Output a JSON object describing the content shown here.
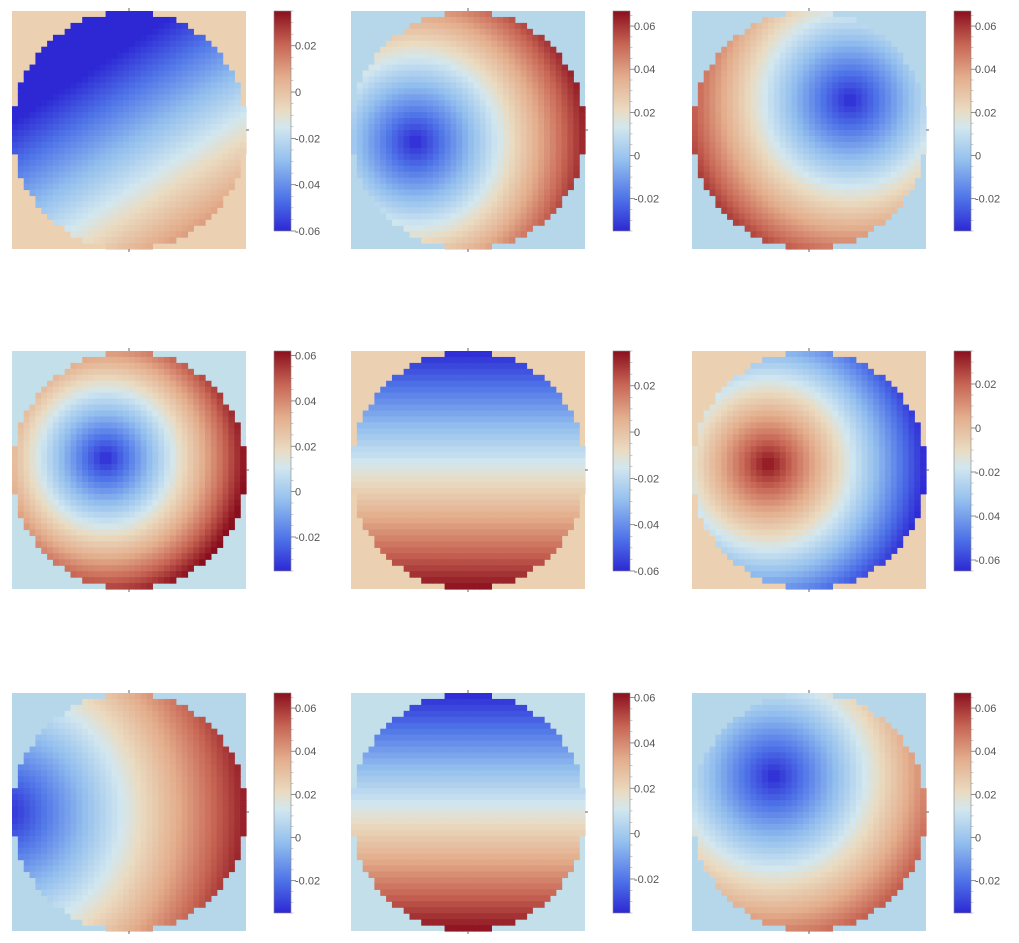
{
  "colors": {
    "low": "#2d28d4",
    "high": "#8a0f1e",
    "tan_background": "#ebd1b2",
    "blue_background": "#b6d7ea",
    "light_blue_background": "#c3dfe9"
  },
  "chart_data": [
    {
      "type": "heatmap",
      "subtype": "circular-field-with-colorbar",
      "grid": "3x3",
      "row": 1,
      "col": 1,
      "background": "tan",
      "colorbar": {
        "range": [
          -0.06,
          0.035
        ],
        "ticks": [
          "0.02",
          "0",
          "-0.02",
          "-0.04",
          "-0.06"
        ]
      },
      "field": {
        "kind": "linear-gradient",
        "direction": "top-left to bottom-right",
        "min_at": "top-left",
        "max_at": "bottom-right"
      }
    },
    {
      "type": "heatmap",
      "subtype": "circular-field-with-colorbar",
      "grid": "3x3",
      "row": 1,
      "col": 2,
      "background": "blue",
      "colorbar": {
        "range": [
          -0.035,
          0.067
        ],
        "ticks": [
          "0.06",
          "0.04",
          "0.02",
          "0",
          "-0.02"
        ]
      },
      "field": {
        "kind": "radial",
        "minimum_location": "left-center",
        "maximum_location": "right edge"
      }
    },
    {
      "type": "heatmap",
      "subtype": "circular-field-with-colorbar",
      "grid": "3x3",
      "row": 1,
      "col": 3,
      "background": "blue",
      "colorbar": {
        "range": [
          -0.035,
          0.067
        ],
        "ticks": [
          "0.06",
          "0.04",
          "0.02",
          "0",
          "-0.02"
        ]
      },
      "field": {
        "kind": "radial",
        "minimum_location": "upper-right",
        "maximum_location": "lower-left edge"
      }
    },
    {
      "type": "heatmap",
      "subtype": "circular-field-with-colorbar",
      "grid": "3x3",
      "row": 2,
      "col": 1,
      "background": "light_blue",
      "colorbar": {
        "range": [
          -0.035,
          0.062
        ],
        "ticks": [
          "0.06",
          "0.04",
          "0.02",
          "0",
          "-0.02"
        ]
      },
      "field": {
        "kind": "radial",
        "minimum_location": "center-left",
        "maximum_location": "right edge"
      }
    },
    {
      "type": "heatmap",
      "subtype": "circular-field-with-colorbar",
      "grid": "3x3",
      "row": 2,
      "col": 2,
      "background": "tan",
      "colorbar": {
        "range": [
          -0.06,
          0.035
        ],
        "ticks": [
          "0.02",
          "0",
          "-0.02",
          "-0.04",
          "-0.06"
        ]
      },
      "field": {
        "kind": "linear-gradient",
        "direction": "top to bottom",
        "min_at": "top",
        "max_at": "bottom"
      }
    },
    {
      "type": "heatmap",
      "subtype": "circular-field-with-colorbar",
      "grid": "3x3",
      "row": 2,
      "col": 3,
      "background": "tan",
      "colorbar": {
        "range": [
          -0.065,
          0.035
        ],
        "ticks": [
          "0.02",
          "0",
          "-0.02",
          "-0.04",
          "-0.06"
        ]
      },
      "field": {
        "kind": "radial-inverted",
        "maximum_location": "center-left",
        "minimum_location": "right edge"
      }
    },
    {
      "type": "heatmap",
      "subtype": "circular-field-with-colorbar",
      "grid": "3x3",
      "row": 3,
      "col": 1,
      "background": "blue",
      "colorbar": {
        "range": [
          -0.035,
          0.067
        ],
        "ticks": [
          "0.06",
          "0.04",
          "0.02",
          "0",
          "-0.02"
        ]
      },
      "field": {
        "kind": "radial",
        "minimum_location": "left edge",
        "maximum_location": "right edge"
      }
    },
    {
      "type": "heatmap",
      "subtype": "circular-field-with-colorbar",
      "grid": "3x3",
      "row": 3,
      "col": 2,
      "background": "light_blue",
      "colorbar": {
        "range": [
          -0.035,
          0.062
        ],
        "ticks": [
          "0.06",
          "0.04",
          "0.02",
          "0",
          "-0.02"
        ]
      },
      "field": {
        "kind": "linear-gradient",
        "direction": "top to bottom",
        "min_at": "top",
        "max_at": "bottom"
      }
    },
    {
      "type": "heatmap",
      "subtype": "circular-field-with-colorbar",
      "grid": "3x3",
      "row": 3,
      "col": 3,
      "background": "blue",
      "colorbar": {
        "range": [
          -0.035,
          0.067
        ],
        "ticks": [
          "0.06",
          "0.04",
          "0.02",
          "0",
          "-0.02"
        ]
      },
      "field": {
        "kind": "radial",
        "minimum_location": "upper-left",
        "maximum_location": "lower-right edge"
      }
    }
  ]
}
